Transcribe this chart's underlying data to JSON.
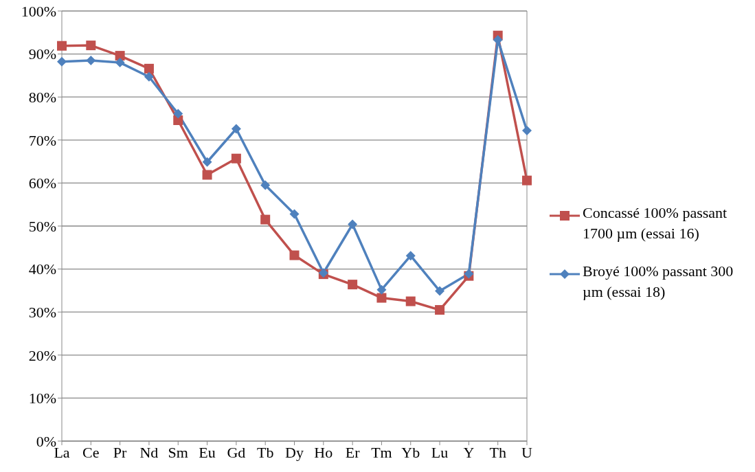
{
  "chart_data": {
    "type": "line",
    "categories": [
      "La",
      "Ce",
      "Pr",
      "Nd",
      "Sm",
      "Eu",
      "Gd",
      "Tb",
      "Dy",
      "Ho",
      "Er",
      "Tm",
      "Yb",
      "Lu",
      "Y",
      "Th",
      "U"
    ],
    "series": [
      {
        "name": "Concassé 100% passant 1700 µm (essai 16)",
        "color": "#c0504d",
        "marker": "square",
        "values": [
          91.9,
          92.0,
          89.6,
          86.6,
          74.6,
          61.9,
          65.7,
          51.5,
          43.2,
          38.8,
          36.4,
          33.3,
          32.5,
          30.5,
          38.4,
          94.3,
          60.6
        ]
      },
      {
        "name": "Broyé 100% passant 300 µm (essai 18)",
        "color": "#4f81bd",
        "marker": "diamond",
        "values": [
          88.2,
          88.5,
          88.0,
          84.7,
          76.1,
          64.9,
          72.6,
          59.5,
          52.8,
          39.1,
          50.4,
          35.2,
          43.1,
          34.9,
          38.9,
          93.3,
          72.2
        ]
      }
    ],
    "ylim": [
      0,
      100
    ],
    "yticks": [
      {
        "value": 0,
        "label": "0%"
      },
      {
        "value": 10,
        "label": "10%"
      },
      {
        "value": 20,
        "label": "20%"
      },
      {
        "value": 30,
        "label": "30%"
      },
      {
        "value": 40,
        "label": "40%"
      },
      {
        "value": 50,
        "label": "50%"
      },
      {
        "value": 60,
        "label": "60%"
      },
      {
        "value": 70,
        "label": "70%"
      },
      {
        "value": 80,
        "label": "80%"
      },
      {
        "value": 90,
        "label": "90%"
      },
      {
        "value": 100,
        "label": "100%"
      }
    ],
    "grid": "y",
    "legend": "right",
    "line_style": "solid"
  }
}
